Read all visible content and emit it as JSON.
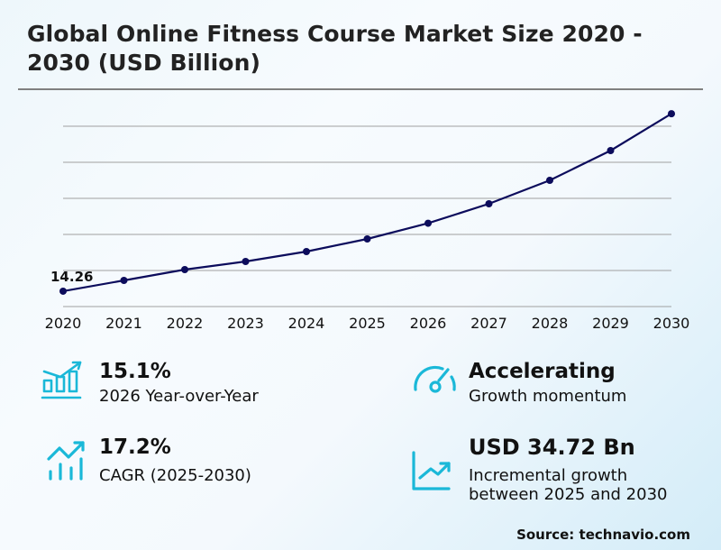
{
  "title": "Global Online Fitness Course Market Size 2020 - 2030 (USD Billion)",
  "chart_data": {
    "type": "line",
    "title": "Global Online Fitness Course Market Size 2020 - 2030 (USD Billion)",
    "xlabel": "",
    "ylabel": "",
    "categories": [
      "2020",
      "2021",
      "2022",
      "2023",
      "2024",
      "2025",
      "2026",
      "2027",
      "2028",
      "2029",
      "2030"
    ],
    "series": [
      {
        "name": "Market Size (USD Billion)",
        "values": [
          14.26,
          17.25,
          20.25,
          22.5,
          25.25,
          28.75,
          33.1,
          38.5,
          45.0,
          53.25,
          63.47
        ]
      }
    ],
    "annotations": [
      {
        "x": "2020",
        "text": "14.26"
      }
    ],
    "ylim": [
      10,
      64
    ],
    "gridlines": [
      10,
      20,
      30,
      40,
      50,
      60
    ],
    "grid": true,
    "y_tick_labels_visible": false,
    "line_color": "#0c0c5c",
    "legend": "none"
  },
  "kpis": [
    {
      "icon": "bar-chart-growth-icon",
      "value": "15.1%",
      "label": "2026 Year-over-Year"
    },
    {
      "icon": "trend-up-bars-icon",
      "value": "17.2%",
      "label": "CAGR (2025-2030)"
    },
    {
      "icon": "speedometer-icon",
      "value": "Accelerating",
      "label": "Growth momentum"
    },
    {
      "icon": "line-chart-up-icon",
      "value": "USD 34.72 Bn",
      "label_line1": "Incremental growth",
      "label_line2": "between 2025 and 2030"
    }
  ],
  "source": "Source: technavio.com",
  "colors": {
    "accent": "#1ab8d8",
    "line": "#0c0c5c",
    "grid": "#a0a0a0"
  }
}
